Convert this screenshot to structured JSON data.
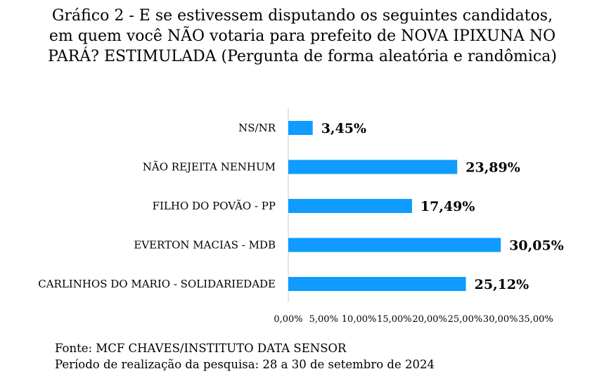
{
  "title": "Gráfico 2 - E se estivessem disputando os seguintes candidatos, em quem você NÃO votaria para prefeito de NOVA IPIXUNA NO PARÁ? ESTIMULADA (Pergunta de forma aleatória e randômica)",
  "colors": {
    "bar": "#0f9bff",
    "axis": "#c8c8c8"
  },
  "chart_data": {
    "type": "bar",
    "orientation": "horizontal",
    "categories": [
      "NS/NR",
      "NÃO REJEITA NENHUM",
      "FILHO DO POVÃO - PP",
      "EVERTON MACIAS - MDB",
      "CARLINHOS DO MARIO - SOLIDARIEDADE"
    ],
    "values": [
      3.45,
      23.89,
      17.49,
      30.05,
      25.12
    ],
    "value_labels": [
      "3,45%",
      "23,89%",
      "17,49%",
      "30,05%",
      "25,12%"
    ],
    "xlim": [
      0,
      35
    ],
    "x_ticks": [
      0,
      5,
      10,
      15,
      20,
      25,
      30,
      35
    ],
    "x_tick_labels": [
      "0,00%",
      "5,00%",
      "10,00%",
      "15,00%",
      "20,00%",
      "25,00%",
      "30,00%",
      "35,00%"
    ],
    "grid": false,
    "legend": "none"
  },
  "footer": {
    "source": "Fonte: MCF CHAVES/INSTITUTO DATA SENSOR",
    "period": "Período de realização da pesquisa: 28 a 30 de setembro de 2024"
  }
}
